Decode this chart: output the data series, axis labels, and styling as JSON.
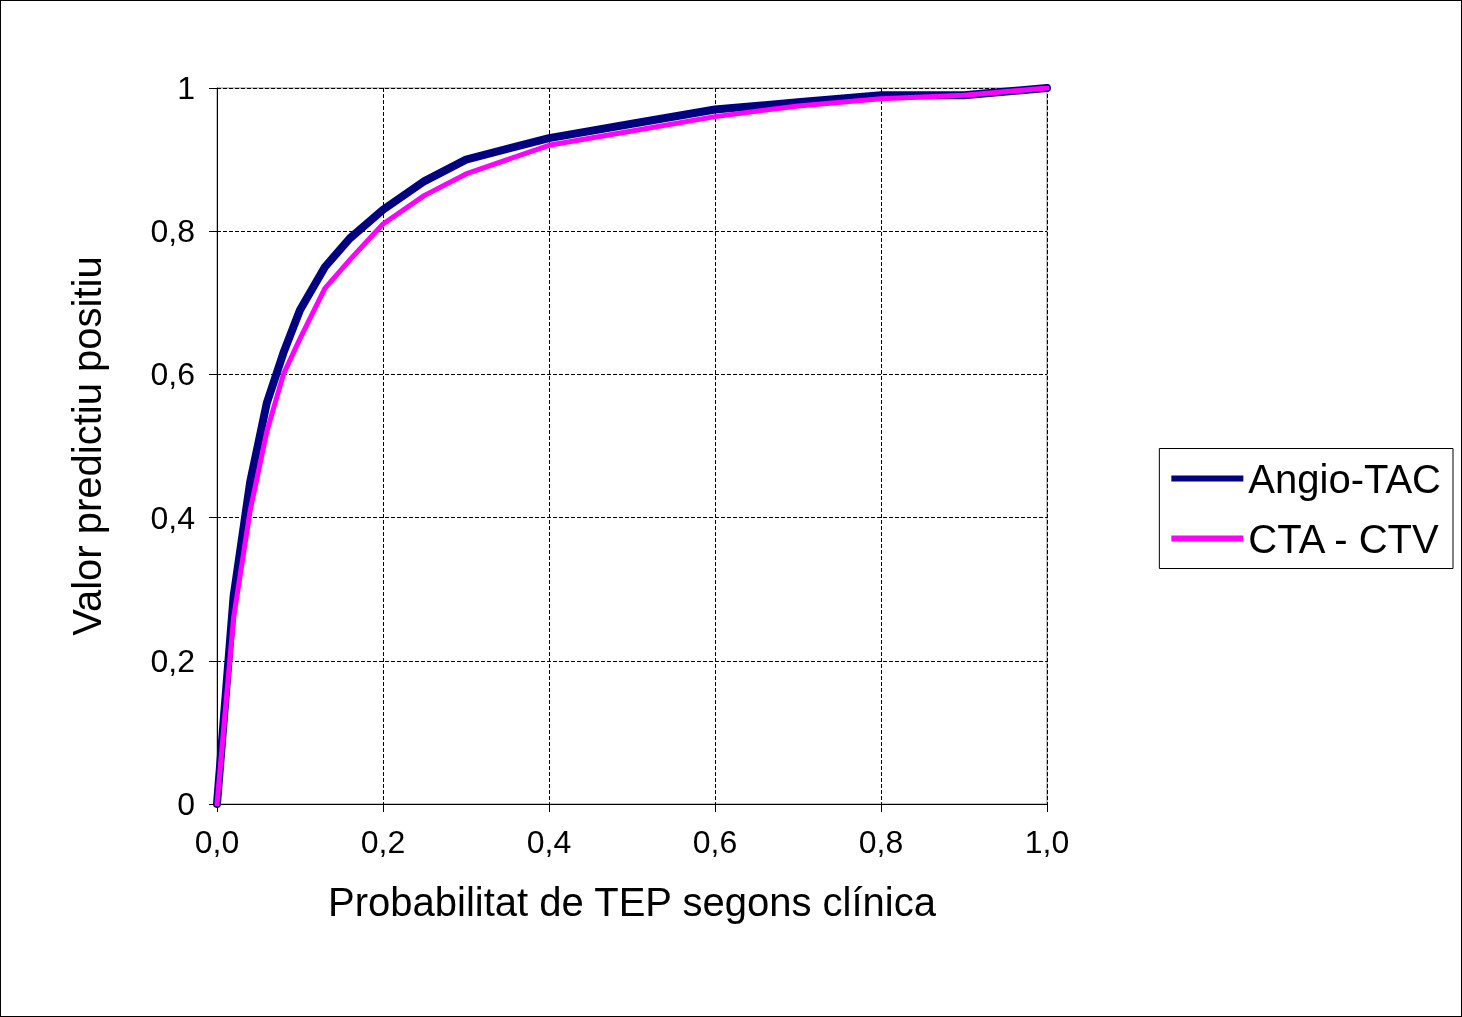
{
  "chart_data": {
    "type": "line",
    "xlabel": "Probabilitat de TEP segons clínica",
    "ylabel": "Valor predictiu positiu",
    "x": [
      0,
      0.02,
      0.04,
      0.06,
      0.08,
      0.1,
      0.13,
      0.16,
      0.2,
      0.25,
      0.3,
      0.4,
      0.5,
      0.6,
      0.7,
      0.8,
      0.9,
      1.0
    ],
    "series": [
      {
        "name": "Angio-TAC",
        "color": "#000080",
        "values": [
          0,
          0.29,
          0.45,
          0.56,
          0.63,
          0.69,
          0.75,
          0.79,
          0.83,
          0.87,
          0.9,
          0.93,
          0.95,
          0.97,
          0.98,
          0.99,
          0.99,
          1
        ]
      },
      {
        "name": "CTA - CTV",
        "color": "#ff00ff",
        "values": [
          0,
          0.26,
          0.41,
          0.52,
          0.6,
          0.65,
          0.72,
          0.76,
          0.81,
          0.85,
          0.88,
          0.92,
          0.94,
          0.96,
          0.975,
          0.985,
          0.99,
          1
        ]
      }
    ],
    "xlim": [
      0,
      1
    ],
    "xticks": [
      {
        "value": 0,
        "label": "0,0"
      },
      {
        "value": 0.2,
        "label": "0,2"
      },
      {
        "value": 0.4,
        "label": "0,4"
      },
      {
        "value": 0.6,
        "label": "0,6"
      },
      {
        "value": 0.8,
        "label": "0,8"
      },
      {
        "value": 1,
        "label": "1,0"
      }
    ],
    "ylim": [
      0,
      1
    ],
    "yticks": [
      0,
      {
        "value": 0.2,
        "label": "0,2"
      },
      {
        "value": 0.4,
        "label": "0,4"
      },
      {
        "value": 0.6,
        "label": "0,6"
      },
      {
        "value": 0.8,
        "label": "0,8"
      },
      1
    ],
    "grid": true,
    "legend": "right",
    "marker": "none",
    "line_style": "solid"
  }
}
